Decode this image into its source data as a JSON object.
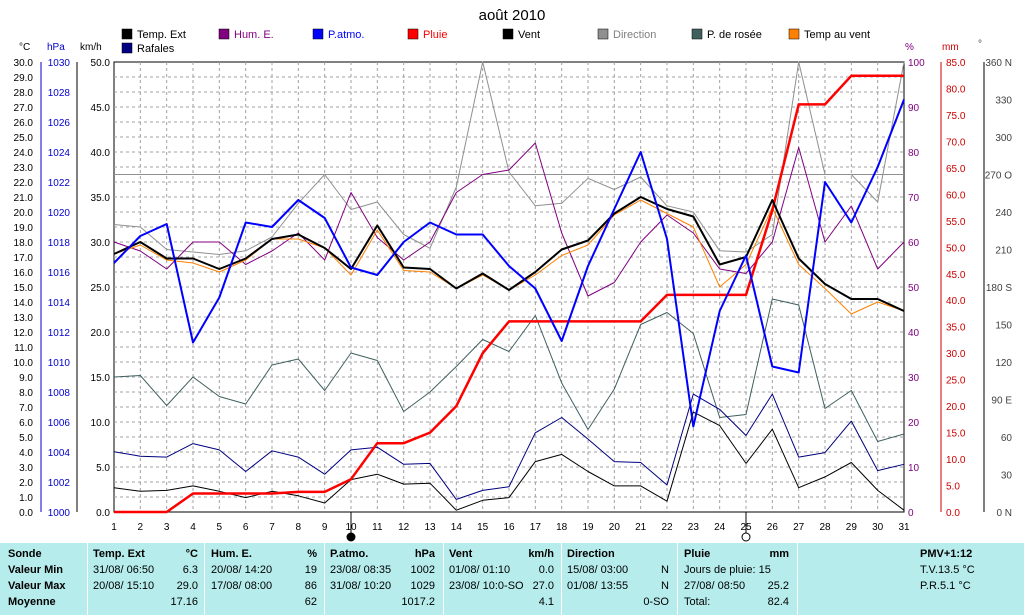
{
  "chart_data": {
    "type": "line",
    "title": "août 2010",
    "x": [
      1,
      2,
      3,
      4,
      5,
      6,
      7,
      8,
      9,
      10,
      11,
      12,
      13,
      14,
      15,
      16,
      17,
      18,
      19,
      20,
      21,
      22,
      23,
      24,
      25,
      26,
      27,
      28,
      29,
      30,
      31
    ],
    "axes": {
      "temp": {
        "label": "°C",
        "min": 0,
        "max": 30,
        "ticks": [
          "0.0",
          "1.0",
          "2.0",
          "3.0",
          "4.0",
          "5.0",
          "6.0",
          "7.0",
          "8.0",
          "9.0",
          "10.0",
          "11.0",
          "12.0",
          "13.0",
          "14.0",
          "15.0",
          "16.0",
          "17.0",
          "18.0",
          "19.0",
          "20.0",
          "21.0",
          "22.0",
          "23.0",
          "24.0",
          "25.0",
          "26.0",
          "27.0",
          "28.0",
          "29.0",
          "30.0"
        ]
      },
      "pressure": {
        "label": "hPa",
        "min": 1000,
        "max": 1030,
        "ticks": [
          "1000",
          "1002",
          "1004",
          "1006",
          "1008",
          "1010",
          "1012",
          "1014",
          "1016",
          "1018",
          "1020",
          "1022",
          "1024",
          "1026",
          "1028",
          "1030"
        ]
      },
      "wind": {
        "label": "km/h",
        "min": 0,
        "max": 50,
        "ticks": [
          "0.0",
          "5.0",
          "10.0",
          "15.0",
          "20.0",
          "25.0",
          "30.0",
          "35.0",
          "40.0",
          "45.0",
          "50.0"
        ]
      },
      "humidity": {
        "label": "%",
        "min": 0,
        "max": 100,
        "ticks": [
          "0",
          "10",
          "20",
          "30",
          "40",
          "50",
          "60",
          "70",
          "80",
          "90",
          "100"
        ]
      },
      "rain": {
        "label": "mm",
        "min": 0,
        "max": 85,
        "ticks": [
          "0.0",
          "5.0",
          "10.0",
          "15.0",
          "20.0",
          "25.0",
          "30.0",
          "35.0",
          "40.0",
          "45.0",
          "50.0",
          "55.0",
          "60.0",
          "65.0",
          "70.0",
          "75.0",
          "80.0",
          "85.0"
        ]
      },
      "direction": {
        "label": "°",
        "min": 0,
        "max": 360,
        "ticks": [
          "0 N",
          "30",
          "60",
          "90 E",
          "120",
          "150",
          "180 S",
          "210",
          "240",
          "270 O",
          "300",
          "330",
          "360 N"
        ]
      }
    },
    "legend": [
      "Temp. Ext",
      "Hum. E.",
      "P.atmo.",
      "Pluie",
      "Vent",
      "Direction",
      "P. de rosée",
      "Temp au vent",
      "Rafales"
    ],
    "series": [
      {
        "name": "Temp. Ext",
        "axis": "temp",
        "color": "#000000",
        "width": 2,
        "values": [
          17.2,
          18.0,
          16.9,
          16.9,
          16.2,
          16.9,
          18.2,
          18.5,
          17.6,
          16.2,
          19.1,
          16.3,
          16.2,
          14.9,
          15.9,
          14.8,
          16.0,
          17.5,
          18.1,
          19.9,
          21.0,
          20.2,
          19.7,
          16.5,
          17.0,
          20.8,
          16.9,
          15.2,
          14.2,
          14.2,
          13.4
        ]
      },
      {
        "name": "Hum. E.",
        "axis": "humidity",
        "color": "#800080",
        "width": 1,
        "values": [
          60,
          58,
          54,
          60,
          60,
          55,
          58,
          62,
          56,
          71,
          61,
          56,
          60,
          71,
          75,
          76,
          82,
          62,
          48,
          51,
          60,
          66,
          62,
          54,
          53,
          60,
          81,
          60,
          68,
          54,
          60
        ]
      },
      {
        "name": "P.atmo.",
        "axis": "pressure",
        "color": "#0000ff",
        "width": 2,
        "values": [
          1016.6,
          1018.4,
          1019.2,
          1011.3,
          1014.3,
          1019.3,
          1019.0,
          1020.8,
          1019.6,
          1016.3,
          1015.8,
          1018.0,
          1019.3,
          1018.5,
          1018.5,
          1016.4,
          1014.9,
          1011.4,
          1016.4,
          1020.2,
          1024.0,
          1018.2,
          1005.7,
          1013.4,
          1017.1,
          1009.7,
          1009.3,
          1022.0,
          1019.3,
          1023.0,
          1027.5
        ]
      },
      {
        "name": "Pluie",
        "axis": "rain",
        "color": "#ff0000",
        "width": 2.5,
        "values": [
          0,
          0,
          0,
          3.5,
          3.5,
          3.5,
          3.5,
          3.8,
          3.8,
          6.2,
          13.0,
          13.0,
          15.0,
          20.0,
          30.0,
          36.0,
          36.0,
          36.0,
          36.0,
          36.0,
          36.0,
          41.0,
          41.0,
          41.0,
          41.0,
          57.0,
          77.0,
          77.0,
          82.4,
          82.4,
          82.4
        ]
      },
      {
        "name": "Vent",
        "axis": "wind",
        "color": "#000000",
        "width": 1,
        "values": [
          2.7,
          2.3,
          2.4,
          2.9,
          2.3,
          1.6,
          2.3,
          1.8,
          1.0,
          3.6,
          4.2,
          3.1,
          3.2,
          0.2,
          1.3,
          1.6,
          5.6,
          6.4,
          4.5,
          2.9,
          2.9,
          1.2,
          11.1,
          9.6,
          5.4,
          9.2,
          2.7,
          3.9,
          5.5,
          2.4,
          0.2
        ]
      },
      {
        "name": "Direction",
        "axis": "direction",
        "color": "#909090",
        "width": 1,
        "values": [
          230,
          228,
          210,
          208,
          206,
          209,
          220,
          247,
          270,
          242,
          248,
          222,
          211,
          260,
          360,
          272,
          245,
          247,
          267,
          258,
          268,
          245,
          240,
          209,
          208,
          222,
          360,
          270,
          270,
          248,
          360
        ]
      },
      {
        "name": "P. de rosée",
        "axis": "temp",
        "color": "#406060",
        "width": 1,
        "values": [
          9.0,
          9.1,
          7.1,
          9.0,
          7.7,
          7.2,
          9.8,
          10.2,
          8.1,
          10.6,
          10.1,
          6.7,
          8.0,
          9.7,
          11.5,
          10.7,
          13.1,
          8.6,
          5.5,
          8.2,
          12.5,
          13.3,
          11.9,
          6.3,
          6.5,
          14.2,
          13.8,
          6.9,
          8.1,
          4.7,
          5.2
        ]
      },
      {
        "name": "Temp au vent",
        "axis": "temp",
        "color": "#ff8000",
        "width": 1,
        "values": [
          17.2,
          17.8,
          16.8,
          16.6,
          16.0,
          16.8,
          18.2,
          18.2,
          17.6,
          15.8,
          18.8,
          16.1,
          16.0,
          14.9,
          15.8,
          14.8,
          15.8,
          17.1,
          17.8,
          19.8,
          20.8,
          19.9,
          19.0,
          15.0,
          16.5,
          20.3,
          16.5,
          14.9,
          13.2,
          14.0,
          13.4
        ]
      },
      {
        "name": "Rafales",
        "axis": "wind",
        "color": "#000080",
        "width": 1,
        "values": [
          6.7,
          6.2,
          6.1,
          7.6,
          6.9,
          4.5,
          6.8,
          6.1,
          4.2,
          6.9,
          7.2,
          5.3,
          5.4,
          1.4,
          2.4,
          2.8,
          8.8,
          10.5,
          8.1,
          5.6,
          5.5,
          3.0,
          13.1,
          11.4,
          8.5,
          13.1,
          6.1,
          6.6,
          10.1,
          4.6,
          5.3
        ]
      }
    ],
    "direction_ref": 270,
    "moon_markers": [
      10,
      25
    ],
    "grid": true
  },
  "stats": {
    "sonde": {
      "header": "Sonde",
      "labels": [
        "Valeur Min",
        "Valeur Max",
        "Moyenne"
      ]
    },
    "temp": {
      "header": "Temp. Ext",
      "unit": "°C",
      "rows": [
        [
          "31/08/ 06:50",
          "6.3"
        ],
        [
          "20/08/ 15:10",
          "29.0"
        ],
        [
          "",
          "17.16"
        ]
      ]
    },
    "hum": {
      "header": "Hum. E.",
      "unit": "%",
      "rows": [
        [
          "20/08/ 14:20",
          "19"
        ],
        [
          "17/08/ 08:00",
          "86"
        ],
        [
          "",
          "62"
        ]
      ]
    },
    "patmo": {
      "header": "P.atmo.",
      "unit": "hPa",
      "rows": [
        [
          "23/08/ 08:35",
          "1002"
        ],
        [
          "31/08/ 10:20",
          "1029"
        ],
        [
          "",
          "1017.2"
        ]
      ]
    },
    "vent": {
      "header": "Vent",
      "unit": "km/h",
      "rows": [
        [
          "01/08/ 01:10",
          "0.0"
        ],
        [
          "23/08/ 10:0-SO",
          "27.0"
        ],
        [
          "",
          "4.1"
        ]
      ]
    },
    "direction": {
      "header": "Direction",
      "rows": [
        [
          "15/08/ 03:00",
          "N"
        ],
        [
          "01/08/ 13:55",
          "N"
        ],
        [
          "",
          "0-SO"
        ]
      ]
    },
    "pluie": {
      "header": "Pluie",
      "unit": "mm",
      "rows": [
        [
          "Jours de pluie: 15",
          ""
        ],
        [
          "27/08/ 08:50",
          "25.2"
        ],
        [
          "Total:",
          "82.4"
        ]
      ]
    },
    "pmv": {
      "header": "PMV+1:12",
      "lines": [
        "T.V.13.5 °C",
        "P.R.5.1 °C"
      ]
    }
  }
}
